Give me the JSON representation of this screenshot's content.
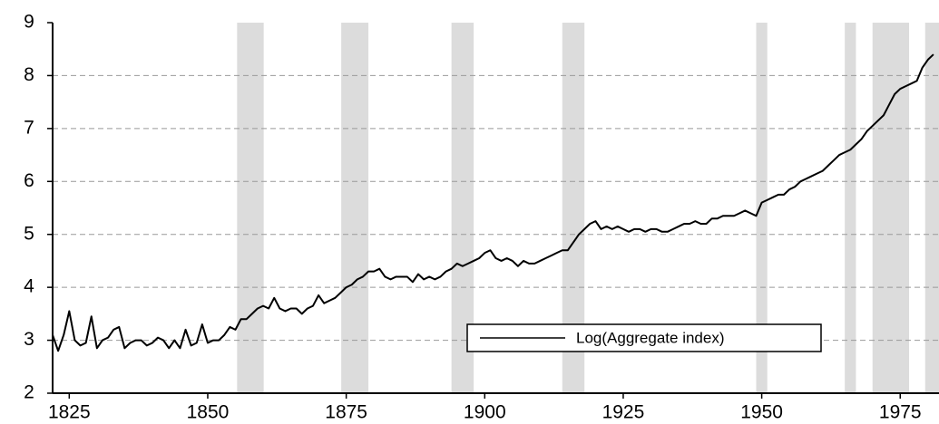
{
  "chart_data": {
    "type": "line",
    "x": [
      1822,
      1823,
      1824,
      1825,
      1826,
      1827,
      1828,
      1829,
      1830,
      1831,
      1832,
      1833,
      1834,
      1835,
      1836,
      1837,
      1838,
      1839,
      1840,
      1841,
      1842,
      1843,
      1844,
      1845,
      1846,
      1847,
      1848,
      1849,
      1850,
      1851,
      1852,
      1853,
      1854,
      1855,
      1856,
      1857,
      1858,
      1859,
      1860,
      1861,
      1862,
      1863,
      1864,
      1865,
      1866,
      1867,
      1868,
      1869,
      1870,
      1871,
      1872,
      1873,
      1874,
      1875,
      1876,
      1877,
      1878,
      1879,
      1880,
      1881,
      1882,
      1883,
      1884,
      1885,
      1886,
      1887,
      1888,
      1889,
      1890,
      1891,
      1892,
      1893,
      1894,
      1895,
      1896,
      1897,
      1898,
      1899,
      1900,
      1901,
      1902,
      1903,
      1904,
      1905,
      1906,
      1907,
      1908,
      1909,
      1910,
      1911,
      1912,
      1913,
      1914,
      1915,
      1916,
      1917,
      1918,
      1919,
      1920,
      1921,
      1922,
      1923,
      1924,
      1925,
      1926,
      1927,
      1928,
      1929,
      1930,
      1931,
      1932,
      1933,
      1934,
      1935,
      1936,
      1937,
      1938,
      1939,
      1940,
      1941,
      1942,
      1943,
      1944,
      1945,
      1946,
      1947,
      1948,
      1949,
      1950,
      1951,
      1952,
      1953,
      1954,
      1955,
      1956,
      1957,
      1958,
      1959,
      1960,
      1961,
      1962,
      1963,
      1964,
      1965,
      1966,
      1967,
      1968,
      1969,
      1970,
      1971,
      1972,
      1973,
      1974,
      1975,
      1976,
      1977,
      1978,
      1979,
      1980,
      1981
    ],
    "series": [
      {
        "name": "Log(Aggregate index)",
        "color": "#000000",
        "values": [
          3.1,
          2.8,
          3.1,
          3.55,
          3.0,
          2.9,
          2.95,
          3.45,
          2.85,
          3.0,
          3.05,
          3.2,
          3.25,
          2.85,
          2.95,
          3.0,
          3.0,
          2.9,
          2.95,
          3.05,
          3.0,
          2.85,
          3.0,
          2.85,
          3.2,
          2.9,
          2.95,
          3.3,
          2.95,
          3.0,
          3.0,
          3.1,
          3.25,
          3.2,
          3.4,
          3.4,
          3.5,
          3.6,
          3.65,
          3.6,
          3.8,
          3.6,
          3.55,
          3.6,
          3.6,
          3.5,
          3.6,
          3.65,
          3.85,
          3.7,
          3.75,
          3.8,
          3.9,
          4.0,
          4.05,
          4.15,
          4.2,
          4.3,
          4.3,
          4.35,
          4.2,
          4.15,
          4.2,
          4.2,
          4.2,
          4.1,
          4.25,
          4.15,
          4.2,
          4.15,
          4.2,
          4.3,
          4.35,
          4.45,
          4.4,
          4.45,
          4.5,
          4.55,
          4.65,
          4.7,
          4.55,
          4.5,
          4.55,
          4.5,
          4.4,
          4.5,
          4.45,
          4.45,
          4.5,
          4.55,
          4.6,
          4.65,
          4.7,
          4.7,
          4.85,
          5.0,
          5.1,
          5.2,
          5.25,
          5.1,
          5.15,
          5.1,
          5.15,
          5.1,
          5.05,
          5.1,
          5.1,
          5.05,
          5.1,
          5.1,
          5.05,
          5.05,
          5.1,
          5.15,
          5.2,
          5.2,
          5.25,
          5.2,
          5.2,
          5.3,
          5.3,
          5.35,
          5.35,
          5.35,
          5.4,
          5.45,
          5.4,
          5.35,
          5.6,
          5.65,
          5.7,
          5.75,
          5.75,
          5.85,
          5.9,
          6.0,
          6.05,
          6.1,
          6.15,
          6.2,
          6.3,
          6.4,
          6.5,
          6.55,
          6.6,
          6.7,
          6.8,
          6.95,
          7.05,
          7.15,
          7.25,
          7.45,
          7.65,
          7.75,
          7.8,
          7.85,
          7.9,
          8.15,
          8.3,
          8.4
        ]
      }
    ],
    "shaded_regions": [
      [
        1855.3,
        1860.1
      ],
      [
        1874.1,
        1879
      ],
      [
        1894,
        1898
      ],
      [
        1914,
        1918
      ],
      [
        1949,
        1951
      ],
      [
        1965,
        1967
      ],
      [
        1970,
        1976.6
      ],
      [
        1979.5,
        1982
      ]
    ],
    "shade_color": "#dcdcdc",
    "xlim": [
      1822,
      1982
    ],
    "xticks": [
      1825,
      1850,
      1875,
      1900,
      1925,
      1950,
      1975
    ],
    "ylim": [
      2,
      9
    ],
    "yticks": [
      2,
      3,
      4,
      5,
      6,
      7,
      8,
      9
    ],
    "grid": true,
    "legend": "lower right"
  }
}
